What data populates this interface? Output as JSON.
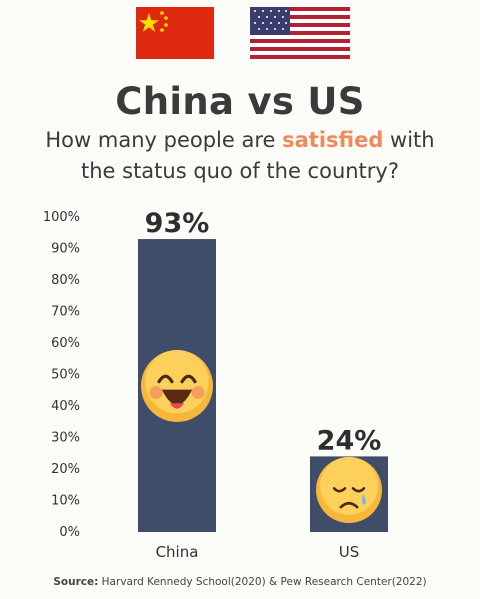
{
  "title": "China vs US",
  "subtitle": {
    "before": "How many people are ",
    "highlight": "satisfied",
    "after": " with",
    "line2": "the status quo of the country?"
  },
  "flags": [
    "china-flag",
    "us-flag"
  ],
  "source_label": "Source:",
  "source_text": " Harvard Kennedy School(2020) & Pew Research Center(2022)",
  "colors": {
    "bar": "#3f4d6b",
    "highlight": "#f08a5d",
    "china_flag": "#de2910",
    "china_star": "#ffde00",
    "us_red": "#b22234",
    "us_blue": "#3c3b6e"
  },
  "chart_data": {
    "type": "bar",
    "categories": [
      "China",
      "US"
    ],
    "values": [
      93,
      24
    ],
    "value_labels": [
      "93%",
      "24%"
    ],
    "icons": [
      "happy-face-icon",
      "sad-face-icon"
    ],
    "yticks": [
      "0%",
      "10%",
      "20%",
      "30%",
      "40%",
      "50%",
      "60%",
      "70%",
      "80%",
      "90%",
      "100%"
    ],
    "ylim": [
      0,
      100
    ],
    "grid": false
  }
}
